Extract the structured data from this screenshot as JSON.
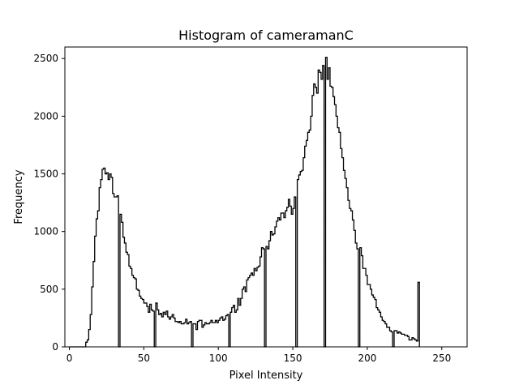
{
  "chart_data": {
    "type": "step",
    "title": "Histogram of cameramanC",
    "xlabel": "Pixel Intensity",
    "ylabel": "Frequency",
    "xlim": [
      -3,
      267
    ],
    "ylim": [
      0,
      2600
    ],
    "x_ticks": [
      0,
      50,
      100,
      150,
      200,
      250
    ],
    "y_ticks": [
      0,
      500,
      1000,
      1500,
      2000,
      2500
    ],
    "grid": false,
    "bin_start": 0,
    "color": "#000000",
    "values": [
      0,
      0,
      0,
      0,
      0,
      0,
      0,
      0,
      0,
      0,
      0,
      40,
      60,
      150,
      280,
      520,
      740,
      960,
      1110,
      1180,
      1380,
      1450,
      1540,
      1550,
      1500,
      1510,
      1450,
      1500,
      1470,
      1330,
      1300,
      1300,
      1310,
      0,
      1150,
      1080,
      950,
      900,
      820,
      800,
      700,
      680,
      620,
      600,
      590,
      500,
      490,
      440,
      420,
      410,
      380,
      380,
      350,
      300,
      370,
      320,
      310,
      0,
      380,
      320,
      280,
      290,
      260,
      300,
      280,
      310,
      260,
      240,
      260,
      280,
      250,
      220,
      220,
      210,
      220,
      200,
      200,
      210,
      240,
      200,
      210,
      220,
      0,
      200,
      200,
      150,
      220,
      230,
      230,
      170,
      190,
      210,
      200,
      200,
      210,
      230,
      210,
      210,
      230,
      210,
      230,
      250,
      260,
      230,
      240,
      270,
      280,
      0,
      300,
      340,
      360,
      300,
      320,
      420,
      360,
      420,
      500,
      520,
      480,
      580,
      600,
      620,
      640,
      620,
      680,
      660,
      690,
      700,
      780,
      860,
      850,
      0,
      870,
      850,
      920,
      1000,
      970,
      980,
      1040,
      1090,
      1120,
      1100,
      1160,
      1160,
      1120,
      1180,
      1210,
      1280,
      1220,
      1150,
      1200,
      1300,
      0,
      1450,
      1490,
      1520,
      1530,
      1640,
      1740,
      1790,
      1860,
      1880,
      2000,
      2180,
      2280,
      2250,
      2200,
      2400,
      2380,
      2320,
      2440,
      0,
      2510,
      2320,
      2420,
      2260,
      2250,
      2170,
      2100,
      2000,
      1900,
      1860,
      1720,
      1640,
      1530,
      1460,
      1380,
      1270,
      1200,
      1180,
      1100,
      1010,
      900,
      850,
      0,
      860,
      790,
      680,
      680,
      620,
      540,
      540,
      500,
      450,
      430,
      410,
      340,
      320,
      300,
      260,
      230,
      220,
      200,
      170,
      170,
      140,
      130,
      0,
      140,
      140,
      120,
      130,
      120,
      110,
      110,
      100,
      100,
      90,
      60,
      60,
      80,
      70,
      60,
      50,
      560
    ]
  }
}
